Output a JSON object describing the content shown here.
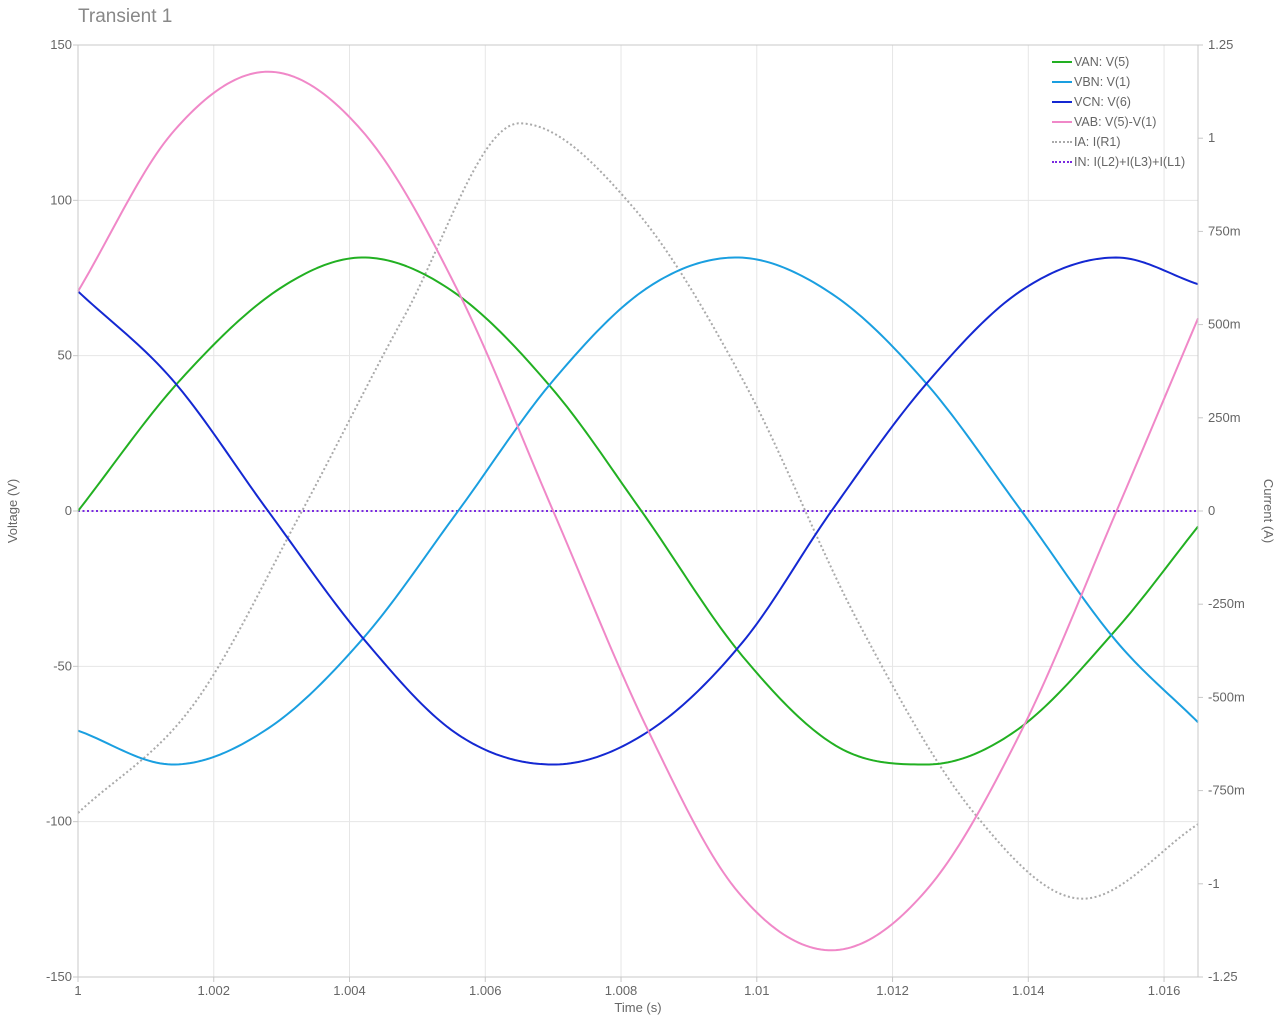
{
  "window": {
    "title": "Transient 1"
  },
  "chart_data": {
    "type": "line",
    "title": "Transient 1",
    "xlabel": "Time (s)",
    "ylabel": "Voltage (V)",
    "y2label": "Current (A)",
    "xlim": [
      1.0,
      1.0165
    ],
    "ylim": [
      -150,
      150
    ],
    "y2lim": [
      -1.25,
      1.25
    ],
    "grid": true,
    "legend_position": "top-right",
    "x_ticks": [
      1.0,
      1.002,
      1.004,
      1.006,
      1.008,
      1.01,
      1.012,
      1.014,
      1.016
    ],
    "x_tick_labels": [
      "1",
      "1.002",
      "1.004",
      "1.006",
      "1.008",
      "1.01",
      "1.012",
      "1.014",
      "1.016"
    ],
    "y_ticks": [
      150,
      100,
      50,
      0,
      -50,
      -100,
      -150
    ],
    "y_tick_labels": [
      "150",
      "100",
      "50",
      "0",
      "-50",
      "-100",
      "-150"
    ],
    "y2_ticks": [
      1.25,
      1.0,
      0.75,
      0.5,
      0.25,
      0.0,
      -0.25,
      -0.5,
      -0.75,
      -1.0,
      -1.25
    ],
    "y2_tick_labels": [
      "1.25",
      "1",
      "750m",
      "500m",
      "250m",
      "0",
      "-250m",
      "-500m",
      "-750m",
      "-1",
      "-1.25"
    ],
    "series": [
      {
        "name": "VAN: V(5)",
        "axis": "left",
        "color": "#22b022",
        "style": "solid",
        "x": [
          1.0,
          1.0015,
          1.003,
          1.0042,
          1.0055,
          1.007,
          1.0083,
          1.0098,
          1.0112,
          1.0125,
          1.0138,
          1.0153,
          1.0165
        ],
        "y": [
          0,
          42,
          72,
          81.6,
          71,
          39,
          0,
          -47,
          -76,
          -81.6,
          -71,
          -38,
          -5
        ]
      },
      {
        "name": "VBN: V(1)",
        "axis": "left",
        "color": "#1a9fe0",
        "style": "solid",
        "x": [
          1.0,
          1.0014,
          1.0028,
          1.0042,
          1.0056,
          1.007,
          1.0084,
          1.0097,
          1.0111,
          1.0125,
          1.0139,
          1.0153,
          1.0165
        ],
        "y": [
          -70.7,
          -81.6,
          -70,
          -41,
          0,
          42,
          72,
          81.6,
          70,
          41,
          0,
          -42,
          -68
        ]
      },
      {
        "name": "VCN: V(6)",
        "axis": "left",
        "color": "#1428d2",
        "style": "solid",
        "x": [
          1.0,
          1.0014,
          1.0028,
          1.0042,
          1.0056,
          1.007,
          1.0084,
          1.0098,
          1.0111,
          1.0125,
          1.0139,
          1.0153,
          1.0165
        ],
        "y": [
          70.7,
          42,
          0,
          -41,
          -72,
          -81.6,
          -71,
          -42,
          0,
          41,
          71,
          81.6,
          73
        ]
      },
      {
        "name": "VAB: V(5)-V(1)",
        "axis": "left",
        "color": "#f088c8",
        "style": "solid",
        "x": [
          1.0,
          1.0014,
          1.0028,
          1.0042,
          1.0056,
          1.007,
          1.0084,
          1.0097,
          1.0111,
          1.0125,
          1.0139,
          1.0153,
          1.0165
        ],
        "y": [
          70.7,
          122,
          141.4,
          122,
          70.7,
          0,
          -70.7,
          -122,
          -141.4,
          -122,
          -70.7,
          0,
          62
        ]
      },
      {
        "name": "IA: I(R1)",
        "axis": "right",
        "color": "#aaaaaa",
        "style": "dotted",
        "x": [
          1.0,
          1.0017,
          1.0033,
          1.0048,
          1.0065,
          1.0082,
          1.0098,
          1.0115,
          1.0132,
          1.0148,
          1.0165
        ],
        "y": [
          -0.81,
          -0.52,
          0.0,
          0.52,
          1.04,
          0.81,
          0.35,
          -0.3,
          -0.81,
          -1.04,
          -0.84
        ]
      },
      {
        "name": "IN: I(L2)+I(L3)+I(L1)",
        "axis": "right",
        "color": "#7a2be0",
        "style": "dotted",
        "x": [
          1.0,
          1.0165
        ],
        "y": [
          0,
          0
        ]
      }
    ]
  }
}
